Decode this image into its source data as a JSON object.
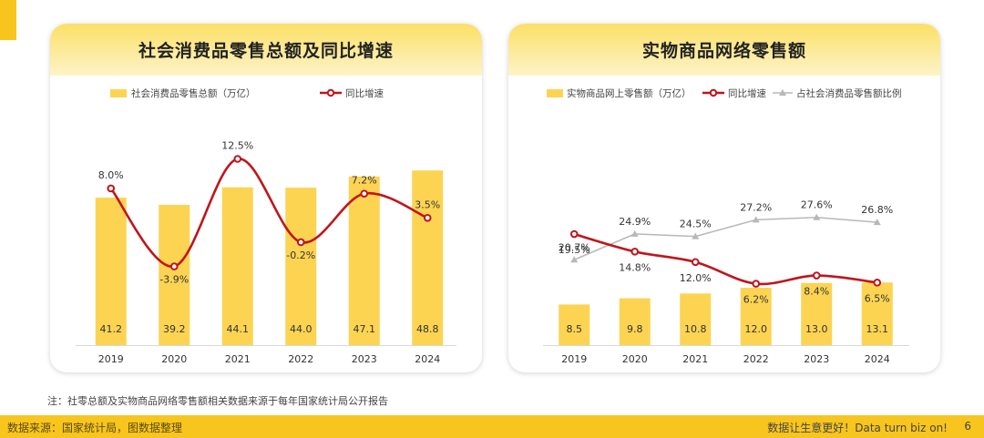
{
  "chart_data": [
    {
      "type": "bar",
      "title": "社会消费品零售总额及同比增速",
      "categories": [
        "2019",
        "2020",
        "2021",
        "2022",
        "2023",
        "2024"
      ],
      "series": [
        {
          "name": "社会消费品零售总额（万亿）",
          "type": "bar",
          "values": [
            41.2,
            39.2,
            44.1,
            44.0,
            47.1,
            48.8
          ],
          "labels": [
            "41.2",
            "39.2",
            "44.1",
            "44.0",
            "47.1",
            "48.8"
          ]
        },
        {
          "name": "同比增速",
          "type": "line",
          "smooth": true,
          "values": [
            8.0,
            -3.9,
            12.5,
            -0.2,
            7.2,
            3.5
          ],
          "labels": [
            "8.0%",
            "-3.9%",
            "12.5%",
            "-0.2%",
            "7.2%",
            "3.5%"
          ]
        }
      ],
      "legend_position": "top",
      "colors": {
        "bar": "#fcd452",
        "line": "#c0151c"
      }
    },
    {
      "type": "bar",
      "title": "实物商品网络零售额",
      "categories": [
        "2019",
        "2020",
        "2021",
        "2022",
        "2023",
        "2024"
      ],
      "series": [
        {
          "name": "实物商品网上零售额（万亿）",
          "type": "bar",
          "values": [
            8.5,
            9.8,
            10.8,
            12.0,
            13.0,
            13.1
          ],
          "labels": [
            "8.5",
            "9.8",
            "10.8",
            "12.0",
            "13.0",
            "13.1"
          ]
        },
        {
          "name": "同比增速",
          "type": "line",
          "smooth": true,
          "values": [
            19.5,
            14.8,
            12.0,
            6.2,
            8.4,
            6.5
          ],
          "labels": [
            "19.5%",
            "14.8%",
            "12.0%",
            "6.2%",
            "8.4%",
            "6.5%"
          ]
        },
        {
          "name": "占社会消费品零售额比例",
          "type": "line",
          "values": [
            20.7,
            24.9,
            24.5,
            27.2,
            27.6,
            26.8
          ],
          "labels": [
            "20.7%",
            "24.9%",
            "24.5%",
            "27.2%",
            "27.6%",
            "26.8%"
          ]
        }
      ],
      "legend_position": "top",
      "colors": {
        "bar": "#fcd452",
        "line": "#c0151c",
        "line2": "#b8b8b8"
      }
    }
  ],
  "footnote": "注：社零总额及实物商品网络零售额相关数据来源于每年国家统计局公开报告",
  "footer": {
    "left": "数据来源：国家统计局，图数据整理",
    "right": "数据让生意更好！Data turn biz on!",
    "page": "6"
  },
  "colors": {
    "accent": "#f7c51e",
    "bar": "#fcd452",
    "red": "#c0151c",
    "gray": "#b8b8b8"
  }
}
